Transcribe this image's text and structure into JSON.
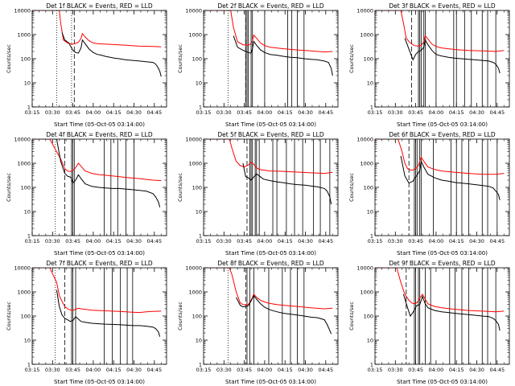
{
  "window": {
    "title": ""
  },
  "shared": {
    "xlabel": "Start Time (05-Oct-05 03:14:00)",
    "ylabel": "Counts/sec",
    "x_ticks": [
      "03:15",
      "03:30",
      "03:45",
      "04:00",
      "04:15",
      "04:30",
      "04:45"
    ],
    "y_ticks": [
      "1",
      "10",
      "100",
      "1000",
      "10000"
    ],
    "colors": {
      "events": "#000000",
      "lld": "#ff0000",
      "axes": "#000000"
    }
  },
  "chart_data": [
    {
      "type": "line",
      "title": "Det 1f BLACK = Events, RED = LLD",
      "xlabel": "Start Time (05-Oct-05 03:14:00)",
      "ylabel": "Counts/sec",
      "x_unit": "minutes after 03:14:00",
      "xlim": [
        1,
        100
      ],
      "ylim": [
        1,
        10000
      ],
      "yscale": "log",
      "dotted_lines": [
        19,
        30
      ],
      "dashed_lines": [
        32
      ],
      "solid_lines": [],
      "series": [
        {
          "x": [
            1,
            21,
            22,
            24,
            27,
            29,
            31,
            33,
            35,
            37,
            38,
            40,
            43,
            46,
            49,
            55,
            60,
            70,
            80,
            90,
            96
          ],
          "values": [
            10000,
            10000,
            3000,
            600,
            450,
            420,
            400,
            430,
            480,
            700,
            1100,
            800,
            550,
            450,
            420,
            400,
            390,
            360,
            330,
            320,
            310
          ]
        },
        {
          "x": [
            23,
            25,
            28,
            31,
            33,
            35,
            37,
            38,
            40,
            43,
            46,
            49,
            52,
            55,
            60,
            62,
            65,
            70,
            75,
            80,
            85,
            90,
            92,
            94,
            95,
            96
          ],
          "values": [
            1200,
            600,
            450,
            220,
            180,
            170,
            280,
            600,
            420,
            250,
            180,
            150,
            140,
            125,
            110,
            105,
            100,
            90,
            85,
            80,
            75,
            70,
            60,
            40,
            30,
            18
          ]
        }
      ]
    },
    {
      "type": "line",
      "title": "Det 2f BLACK = Events, RED = LLD",
      "xlabel": "Start Time (05-Oct-05 03:14:00)",
      "ylabel": "Counts/sec",
      "x_unit": "minutes after 03:14:00",
      "xlim": [
        1,
        100
      ],
      "ylim": [
        1,
        10000
      ],
      "yscale": "log",
      "dotted_lines": [
        19
      ],
      "dashed_lines": [
        32
      ],
      "solid_lines": [
        32,
        33,
        34,
        36,
        37,
        46,
        63,
        66,
        70,
        75
      ],
      "series": [
        {
          "x": [
            1,
            21,
            23,
            26,
            30,
            33,
            35,
            37,
            38,
            40,
            43,
            46,
            50,
            60,
            70,
            80,
            90,
            96
          ],
          "values": [
            10000,
            10000,
            2000,
            500,
            380,
            360,
            380,
            550,
            950,
            700,
            450,
            350,
            300,
            260,
            230,
            210,
            190,
            200
          ]
        },
        {
          "x": [
            23,
            26,
            29,
            32,
            34,
            36,
            37,
            38,
            40,
            43,
            46,
            50,
            55,
            60,
            65,
            70,
            75,
            80,
            85,
            90,
            93,
            95,
            96
          ],
          "values": [
            900,
            300,
            240,
            200,
            180,
            170,
            260,
            520,
            360,
            230,
            180,
            150,
            140,
            125,
            115,
            110,
            100,
            95,
            90,
            80,
            70,
            40,
            20
          ]
        }
      ]
    },
    {
      "type": "line",
      "title": "Det 3f BLACK = Events, RED = LLD",
      "xlabel": "Start Time (05-Oct-05 03:14:00)",
      "ylabel": "Counts/sec",
      "x_unit": "minutes after 03:14:00",
      "xlim": [
        1,
        100
      ],
      "ylim": [
        1,
        10000
      ],
      "yscale": "log",
      "dotted_lines": [],
      "dashed_lines": [
        28
      ],
      "solid_lines": [
        33,
        34,
        35,
        37,
        38,
        46,
        59,
        61,
        67,
        72,
        80,
        84,
        90
      ],
      "series": [
        {
          "x": [
            1,
            20,
            22,
            24,
            27,
            30,
            33,
            35,
            37,
            38,
            40,
            43,
            46,
            50,
            60,
            70,
            80,
            90,
            96
          ],
          "values": [
            10000,
            10000,
            3000,
            700,
            450,
            350,
            330,
            360,
            500,
            900,
            650,
            400,
            320,
            280,
            240,
            220,
            210,
            200,
            220
          ]
        },
        {
          "x": [
            23,
            26,
            29,
            31,
            33,
            35,
            37,
            38,
            40,
            43,
            46,
            50,
            55,
            60,
            70,
            80,
            85,
            88,
            90,
            92,
            93
          ],
          "values": [
            700,
            250,
            90,
            150,
            200,
            220,
            300,
            600,
            380,
            220,
            150,
            130,
            115,
            105,
            95,
            85,
            80,
            70,
            60,
            40,
            25
          ]
        }
      ]
    },
    {
      "type": "line",
      "title": "Det 4f BLACK = Events, RED = LLD",
      "xlabel": "Start Time (05-Oct-05 03:14:00)",
      "ylabel": "Counts/sec",
      "x_unit": "minutes after 03:14:00",
      "xlim": [
        1,
        100
      ],
      "ylim": [
        1,
        10000
      ],
      "yscale": "log",
      "dotted_lines": [
        18
      ],
      "dashed_lines": [
        25
      ],
      "solid_lines": [
        30,
        31,
        32,
        54,
        59,
        64,
        70,
        76
      ],
      "series": [
        {
          "x": [
            1,
            14,
            19,
            22,
            25,
            27,
            29,
            31,
            33,
            35,
            37,
            40,
            45,
            50,
            60,
            70,
            80,
            90,
            96
          ],
          "values": [
            10000,
            10000,
            3000,
            1500,
            600,
            480,
            450,
            500,
            650,
            1000,
            750,
            480,
            380,
            340,
            300,
            260,
            230,
            200,
            190
          ]
        },
        {
          "x": [
            19,
            22,
            25,
            27,
            29,
            30,
            31,
            33,
            35,
            37,
            40,
            45,
            50,
            55,
            60,
            65,
            70,
            75,
            80,
            85,
            90,
            92,
            94,
            95
          ],
          "values": [
            10000,
            1200,
            380,
            290,
            270,
            230,
            150,
            200,
            330,
            230,
            140,
            110,
            100,
            95,
            90,
            90,
            85,
            80,
            75,
            70,
            55,
            40,
            25,
            15
          ]
        }
      ]
    },
    {
      "type": "line",
      "title": "Det 5f BLACK = Events, RED = LLD",
      "xlabel": "Start Time (05-Oct-05 03:14:00)",
      "ylabel": "Counts/sec",
      "x_unit": "minutes after 03:14:00",
      "xlim": [
        1,
        100
      ],
      "ylim": [
        1,
        10000
      ],
      "yscale": "log",
      "dotted_lines": [],
      "dashed_lines": [
        33
      ],
      "solid_lines": [
        35,
        36,
        37,
        39,
        40,
        42,
        52,
        55,
        62,
        68,
        74,
        82,
        87,
        94
      ],
      "series": [
        {
          "x": [
            1,
            20,
            22,
            25,
            28,
            31,
            34,
            36,
            38,
            40,
            42,
            45,
            50,
            60,
            70,
            80,
            90,
            96
          ],
          "values": [
            10000,
            10000,
            4000,
            1200,
            800,
            700,
            850,
            1100,
            900,
            650,
            560,
            520,
            480,
            460,
            430,
            400,
            380,
            420
          ]
        },
        {
          "x": [
            30,
            32,
            34,
            36,
            38,
            40,
            42,
            45,
            50,
            55,
            60,
            65,
            70,
            75,
            80,
            85,
            90,
            92,
            94,
            95
          ],
          "values": [
            1000,
            280,
            250,
            200,
            270,
            360,
            300,
            220,
            190,
            170,
            155,
            140,
            130,
            125,
            115,
            105,
            90,
            70,
            40,
            20
          ]
        }
      ]
    },
    {
      "type": "line",
      "title": "Det 6f BLACK = Events, RED = LLD",
      "xlabel": "Start Time (05-Oct-05 03:14:00)",
      "ylabel": "Counts/sec",
      "x_unit": "minutes after 03:14:00",
      "xlim": [
        1,
        100
      ],
      "ylim": [
        1,
        10000
      ],
      "yscale": "log",
      "dotted_lines": [],
      "dashed_lines": [
        26
      ],
      "solid_lines": [
        30,
        31,
        32,
        34,
        35,
        44,
        57,
        61,
        65,
        70,
        80,
        84,
        91
      ],
      "series": [
        {
          "x": [
            1,
            18,
            21,
            23,
            25,
            28,
            31,
            33,
            35,
            37,
            40,
            45,
            50,
            60,
            70,
            80,
            90,
            96
          ],
          "values": [
            10000,
            10000,
            3000,
            1000,
            600,
            500,
            600,
            800,
            1800,
            1200,
            700,
            550,
            480,
            420,
            380,
            350,
            350,
            380
          ]
        },
        {
          "x": [
            20,
            23,
            26,
            29,
            30,
            32,
            34,
            35,
            37,
            40,
            45,
            50,
            55,
            60,
            70,
            80,
            85,
            88,
            90,
            92,
            93
          ],
          "values": [
            2000,
            300,
            150,
            180,
            230,
            320,
            500,
            1200,
            700,
            350,
            250,
            200,
            180,
            160,
            140,
            120,
            110,
            95,
            70,
            50,
            30
          ]
        }
      ]
    },
    {
      "type": "line",
      "title": "Det 7f BLACK = Events, RED = LLD",
      "xlabel": "Start Time (05-Oct-05 03:14:00)",
      "ylabel": "Counts/sec",
      "x_unit": "minutes after 03:14:00",
      "xlim": [
        1,
        100
      ],
      "ylim": [
        1,
        10000
      ],
      "yscale": "log",
      "dotted_lines": [
        18
      ],
      "dashed_lines": [
        25
      ],
      "solid_lines": [
        30,
        31,
        33,
        54,
        60,
        66,
        71,
        75
      ],
      "series": [
        {
          "x": [
            1,
            14,
            19,
            21,
            23,
            25,
            27,
            29,
            31,
            33,
            35,
            37,
            40,
            45,
            50,
            55,
            60,
            65,
            70,
            75,
            80,
            85,
            90,
            96
          ],
          "values": [
            10000,
            10000,
            2500,
            700,
            400,
            250,
            200,
            180,
            170,
            190,
            210,
            200,
            190,
            175,
            170,
            165,
            160,
            155,
            150,
            145,
            140,
            150,
            155,
            160
          ]
        },
        {
          "x": [
            19,
            21,
            23,
            25,
            27,
            29,
            31,
            33,
            35,
            37,
            40,
            45,
            50,
            55,
            60,
            65,
            70,
            75,
            80,
            85,
            90,
            92,
            94,
            95
          ],
          "values": [
            1200,
            250,
            110,
            80,
            70,
            60,
            65,
            95,
            75,
            60,
            55,
            50,
            48,
            46,
            45,
            44,
            42,
            40,
            40,
            38,
            35,
            30,
            22,
            14
          ]
        }
      ]
    },
    {
      "type": "line",
      "title": "Det 8f BLACK = Events, RED = LLD",
      "xlabel": "Start Time (05-Oct-05 03:14:00)",
      "ylabel": "Counts/sec",
      "x_unit": "minutes after 03:14:00",
      "xlim": [
        1,
        100
      ],
      "ylim": [
        1,
        10000
      ],
      "yscale": "log",
      "dotted_lines": [
        19
      ],
      "dashed_lines": [
        32
      ],
      "solid_lines": [
        33,
        35,
        38,
        49,
        59,
        65,
        70,
        75
      ],
      "series": [
        {
          "x": [
            1,
            20,
            22,
            25,
            28,
            30,
            32,
            34,
            36,
            38,
            40,
            43,
            46,
            50,
            55,
            60,
            70,
            80,
            90,
            96
          ],
          "values": [
            10000,
            10000,
            5000,
            1000,
            350,
            300,
            290,
            300,
            450,
            800,
            600,
            450,
            380,
            330,
            300,
            280,
            250,
            220,
            200,
            210
          ]
        },
        {
          "x": [
            25,
            28,
            30,
            32,
            34,
            36,
            38,
            40,
            43,
            46,
            50,
            55,
            60,
            65,
            70,
            75,
            80,
            85,
            90,
            92,
            94,
            95
          ],
          "values": [
            600,
            280,
            240,
            250,
            270,
            420,
            700,
            500,
            320,
            230,
            180,
            150,
            130,
            120,
            110,
            100,
            90,
            85,
            70,
            45,
            25,
            18
          ]
        }
      ]
    },
    {
      "type": "line",
      "title": "Det 9f BLACK = Events, RED = LLD",
      "xlabel": "Start Time (05-Oct-05 03:14:00)",
      "ylabel": "Counts/sec",
      "x_unit": "minutes after 03:14:00",
      "xlim": [
        1,
        100
      ],
      "ylim": [
        1,
        10000
      ],
      "yscale": "log",
      "dotted_lines": [],
      "dashed_lines": [
        24
      ],
      "solid_lines": [
        30,
        31,
        33,
        34,
        38,
        42,
        56,
        60,
        65,
        70,
        80,
        84,
        90
      ],
      "series": [
        {
          "x": [
            1,
            17,
            20,
            23,
            26,
            28,
            30,
            32,
            34,
            36,
            38,
            40,
            45,
            50,
            60,
            70,
            80,
            90,
            96
          ],
          "values": [
            10000,
            10000,
            2500,
            800,
            450,
            350,
            320,
            360,
            550,
            800,
            500,
            320,
            250,
            220,
            190,
            170,
            160,
            150,
            160
          ]
        },
        {
          "x": [
            22,
            25,
            27,
            29,
            31,
            32,
            34,
            36,
            38,
            40,
            45,
            50,
            55,
            60,
            70,
            80,
            85,
            88,
            90,
            92,
            93
          ],
          "values": [
            800,
            220,
            100,
            140,
            230,
            280,
            300,
            650,
            320,
            220,
            170,
            150,
            140,
            130,
            115,
            100,
            95,
            80,
            65,
            45,
            25
          ]
        }
      ]
    }
  ]
}
